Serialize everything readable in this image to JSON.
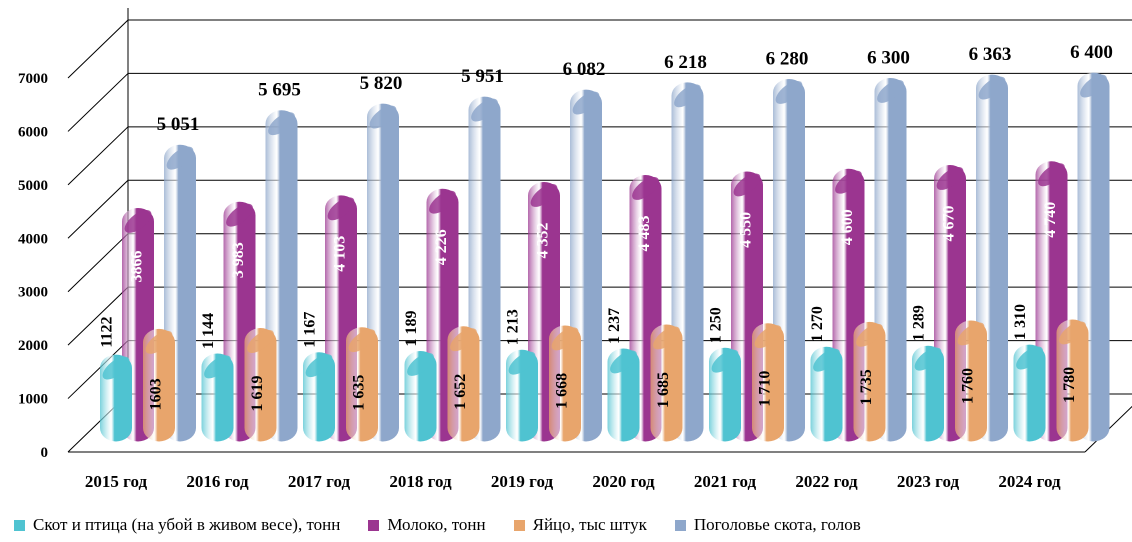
{
  "chart_data": {
    "type": "bar",
    "categories": [
      "2015 год",
      "2016 год",
      "2017 год",
      "2018 год",
      "2019 год",
      "2020 год",
      "2021 год",
      "2022 год",
      "2023 год",
      "2024 год"
    ],
    "series": [
      {
        "name": "Скот и птица (на убой в живом весе), тонн",
        "color": "#4FC3D1",
        "values": [
          1122,
          1144,
          1167,
          1189,
          1213,
          1237,
          1250,
          1270,
          1289,
          1310
        ],
        "labels": [
          "1122",
          "1 144",
          "1 167",
          "1 189",
          "1 213",
          "1 237",
          "1 250",
          "1 270",
          "1 289",
          "1 310"
        ]
      },
      {
        "name": "Молоко, тонн",
        "color": "#9B3590",
        "values": [
          3866,
          3983,
          4103,
          4226,
          4352,
          4483,
          4550,
          4600,
          4670,
          4740
        ],
        "labels": [
          "3866",
          "3 983",
          "4 103",
          "4 226",
          "4 352",
          "4 483",
          "4 550",
          "4 600",
          "4 670",
          "4 740"
        ]
      },
      {
        "name": "Яйцо, тыс штук",
        "color": "#E8A56C",
        "values": [
          1603,
          1619,
          1635,
          1652,
          1668,
          1685,
          1710,
          1735,
          1760,
          1780
        ],
        "labels": [
          "1603",
          "1 619",
          "1 635",
          "1 652",
          "1 668",
          "1 685",
          "1 710",
          "1 735",
          "1 760",
          "1 780"
        ]
      },
      {
        "name": "Поголовье скота, голов",
        "color": "#8EA7CB",
        "values": [
          5051,
          5695,
          5820,
          5951,
          6082,
          6218,
          6280,
          6300,
          6363,
          6400
        ],
        "labels": [
          "5 051",
          "5 695",
          "5 820",
          "5 951",
          "6 082",
          "6 218",
          "6 280",
          "6 300",
          "6 363",
          "6 400"
        ]
      }
    ],
    "ylim": [
      0,
      7000
    ],
    "yticks": [
      "0",
      "1000",
      "2000",
      "3000",
      "4000",
      "5000",
      "6000",
      "7000"
    ],
    "grid": true,
    "legend_position": "bottom"
  }
}
